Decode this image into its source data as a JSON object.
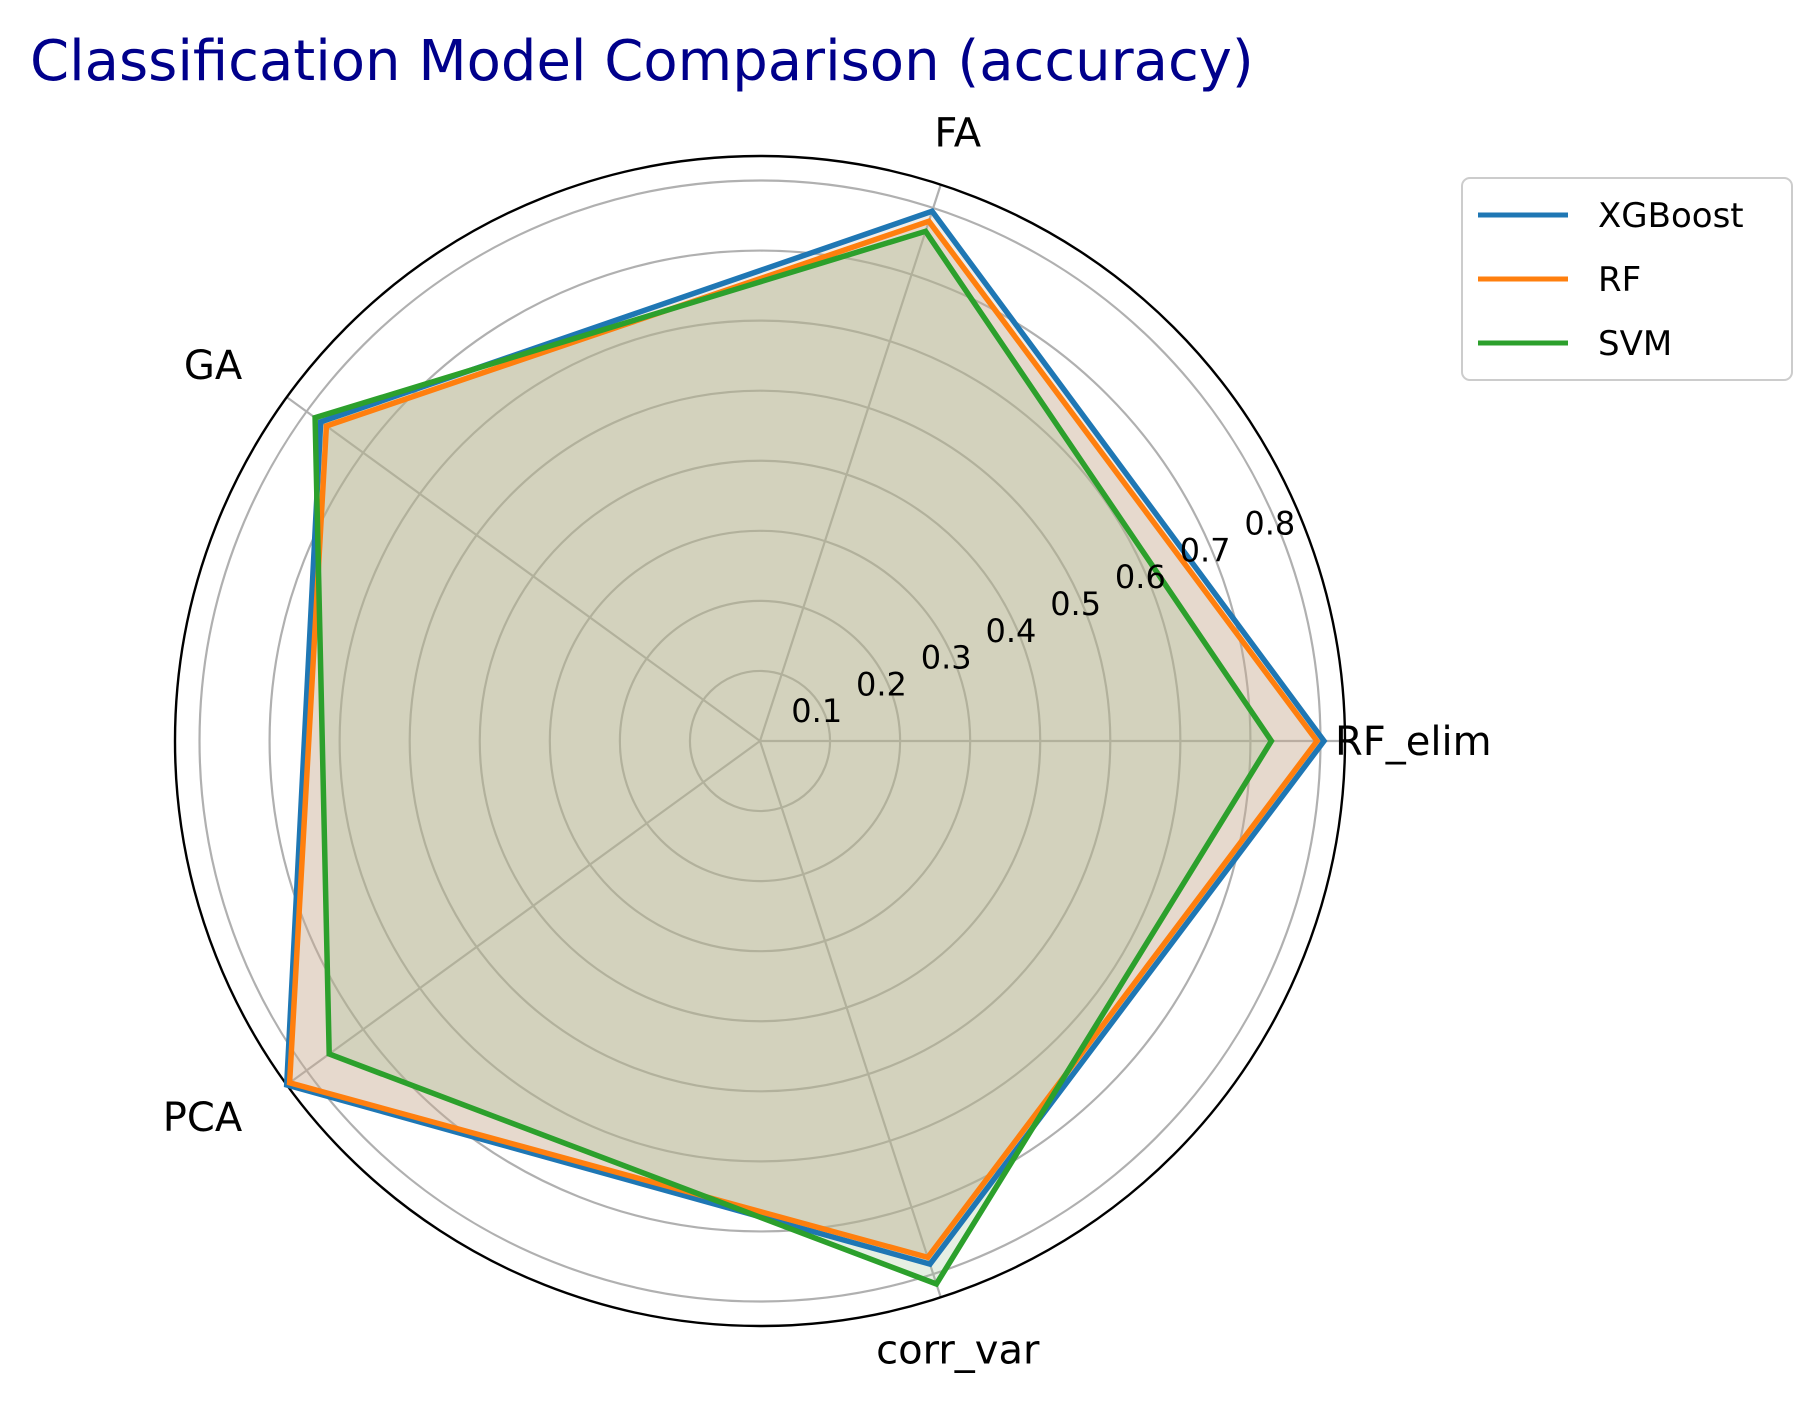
{
  "chart_data": {
    "type": "radar",
    "title": "Classification Model Comparison (accuracy)",
    "categories": [
      "RF_elim",
      "FA",
      "GA",
      "PCA",
      "corr_var"
    ],
    "series": [
      {
        "name": "XGBoost",
        "color": "#1f77b4",
        "values": [
          0.805,
          0.795,
          0.775,
          0.835,
          0.785
        ]
      },
      {
        "name": "RF",
        "color": "#ff7f0e",
        "values": [
          0.795,
          0.78,
          0.765,
          0.83,
          0.775
        ]
      },
      {
        "name": "SVM",
        "color": "#2ca02c",
        "values": [
          0.73,
          0.765,
          0.785,
          0.76,
          0.815
        ]
      }
    ],
    "radial_ticks": [
      "0.1",
      "0.2",
      "0.3",
      "0.4",
      "0.5",
      "0.6",
      "0.7",
      "0.8"
    ],
    "radial_tick_values": [
      0.1,
      0.2,
      0.3,
      0.4,
      0.5,
      0.6,
      0.7,
      0.8
    ],
    "rlim": [
      0,
      0.835
    ],
    "grid": true,
    "legend_position": "upper-right",
    "fill_colors": [
      "#c8b8a8",
      "#c8a07a",
      "#9abf8e"
    ]
  }
}
